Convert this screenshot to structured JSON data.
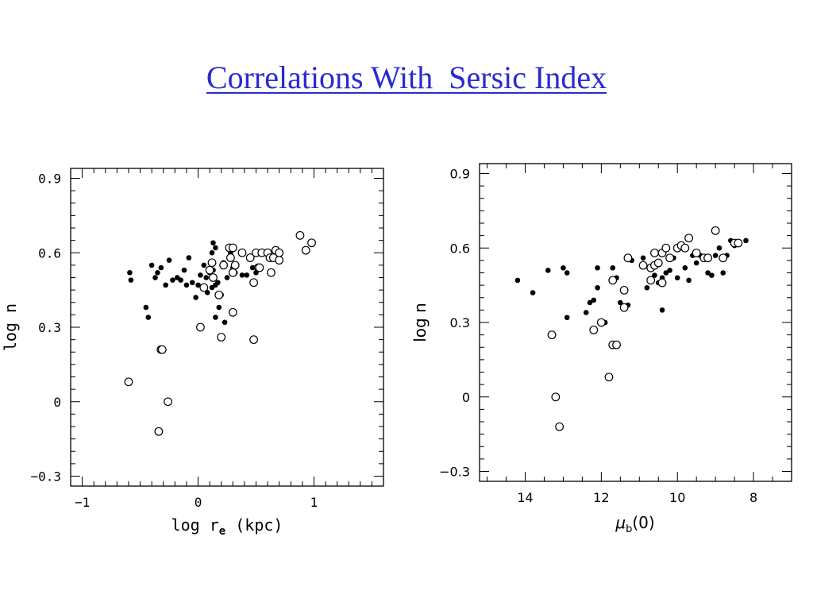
{
  "slide": {
    "title": "Correlations With  Sersic Index"
  },
  "colors": {
    "title": "#2a2ad0",
    "axes": "#000000",
    "filled_marker": "#000000",
    "open_marker_fill": "#ffffff"
  },
  "chart_data": [
    {
      "type": "scatter",
      "title": "",
      "xlabel_main": "log r",
      "xlabel_sub": "e",
      "xlabel_unit": "(kpc)",
      "ylabel": "log n",
      "xlim": [
        -1.1,
        1.6
      ],
      "ylim": [
        -0.34,
        0.94
      ],
      "x_major_ticks": [
        -1,
        0,
        1
      ],
      "x_tick_labels": [
        "−1",
        "0",
        "1"
      ],
      "y_major_ticks": [
        -0.3,
        0,
        0.3,
        0.6,
        0.9
      ],
      "y_tick_labels": [
        "−0.3",
        "0",
        "0.3",
        "0.6",
        "0.9"
      ],
      "grid": false,
      "legend": "none",
      "series": [
        {
          "marker": "filled-circle",
          "points": [
            [
              -0.59,
              0.52
            ],
            [
              -0.58,
              0.49
            ],
            [
              -0.45,
              0.38
            ],
            [
              -0.43,
              0.34
            ],
            [
              -0.4,
              0.55
            ],
            [
              -0.37,
              0.5
            ],
            [
              -0.35,
              0.52
            ],
            [
              -0.32,
              0.54
            ],
            [
              -0.28,
              0.47
            ],
            [
              -0.25,
              0.57
            ],
            [
              -0.22,
              0.49
            ],
            [
              -0.18,
              0.5
            ],
            [
              -0.15,
              0.49
            ],
            [
              -0.12,
              0.53
            ],
            [
              -0.1,
              0.47
            ],
            [
              -0.08,
              0.58
            ],
            [
              -0.05,
              0.48
            ],
            [
              -0.02,
              0.42
            ],
            [
              0.0,
              0.47
            ],
            [
              0.02,
              0.51
            ],
            [
              0.05,
              0.55
            ],
            [
              0.08,
              0.44
            ],
            [
              0.1,
              0.52
            ],
            [
              0.12,
              0.6
            ],
            [
              0.13,
              0.53
            ],
            [
              0.15,
              0.62
            ],
            [
              0.15,
              0.34
            ],
            [
              0.15,
              0.47
            ],
            [
              0.18,
              0.38
            ],
            [
              0.2,
              0.43
            ],
            [
              0.22,
              0.56
            ],
            [
              0.23,
              0.32
            ],
            [
              0.25,
              0.5
            ],
            [
              0.28,
              0.6
            ],
            [
              0.3,
              0.54
            ],
            [
              0.32,
              0.52
            ],
            [
              0.38,
              0.51
            ],
            [
              0.42,
              0.51
            ],
            [
              0.47,
              0.54
            ],
            [
              0.5,
              0.52
            ],
            [
              0.12,
              0.46
            ],
            [
              0.13,
              0.64
            ],
            [
              0.17,
              0.48
            ],
            [
              0.07,
              0.5
            ]
          ]
        },
        {
          "marker": "open-circle",
          "points": [
            [
              -0.6,
              0.08
            ],
            [
              -0.34,
              -0.12
            ],
            [
              -0.32,
              0.21
            ],
            [
              -0.31,
              0.21
            ],
            [
              -0.26,
              0.0
            ],
            [
              0.02,
              0.3
            ],
            [
              0.05,
              0.46
            ],
            [
              0.12,
              0.56
            ],
            [
              0.13,
              0.5
            ],
            [
              0.18,
              0.43
            ],
            [
              0.2,
              0.26
            ],
            [
              0.22,
              0.55
            ],
            [
              0.27,
              0.62
            ],
            [
              0.28,
              0.58
            ],
            [
              0.3,
              0.36
            ],
            [
              0.3,
              0.62
            ],
            [
              0.3,
              0.52
            ],
            [
              0.32,
              0.55
            ],
            [
              0.38,
              0.6
            ],
            [
              0.45,
              0.58
            ],
            [
              0.48,
              0.48
            ],
            [
              0.48,
              0.25
            ],
            [
              0.5,
              0.6
            ],
            [
              0.52,
              0.54
            ],
            [
              0.53,
              0.54
            ],
            [
              0.55,
              0.6
            ],
            [
              0.6,
              0.6
            ],
            [
              0.62,
              0.58
            ],
            [
              0.63,
              0.52
            ],
            [
              0.65,
              0.58
            ],
            [
              0.67,
              0.61
            ],
            [
              0.7,
              0.6
            ],
            [
              0.7,
              0.57
            ],
            [
              0.88,
              0.67
            ],
            [
              0.93,
              0.61
            ],
            [
              0.98,
              0.64
            ],
            [
              0.1,
              0.53
            ]
          ]
        }
      ]
    },
    {
      "type": "scatter",
      "title": "",
      "xlabel_symbol": "μ",
      "xlabel_sub": "b",
      "xlabel_tail": "(0)",
      "ylabel": "log n",
      "xlim": [
        15.2,
        7.0
      ],
      "ylim": [
        -0.34,
        0.94
      ],
      "x_major_ticks": [
        14,
        12,
        10,
        8
      ],
      "x_tick_labels": [
        "14",
        "12",
        "10",
        "8"
      ],
      "y_major_ticks": [
        -0.3,
        0,
        0.3,
        0.6,
        0.9
      ],
      "y_tick_labels": [
        "−0.3",
        "0",
        "0.3",
        "0.6",
        "0.9"
      ],
      "grid": false,
      "legend": "none",
      "series": [
        {
          "marker": "filled-circle",
          "points": [
            [
              14.2,
              0.47
            ],
            [
              13.8,
              0.42
            ],
            [
              13.4,
              0.51
            ],
            [
              13.0,
              0.52
            ],
            [
              12.9,
              0.5
            ],
            [
              12.9,
              0.32
            ],
            [
              12.4,
              0.34
            ],
            [
              12.3,
              0.38
            ],
            [
              12.2,
              0.39
            ],
            [
              12.1,
              0.44
            ],
            [
              12.1,
              0.52
            ],
            [
              11.9,
              0.3
            ],
            [
              11.7,
              0.52
            ],
            [
              11.6,
              0.48
            ],
            [
              11.5,
              0.38
            ],
            [
              11.3,
              0.37
            ],
            [
              11.2,
              0.55
            ],
            [
              10.9,
              0.56
            ],
            [
              10.8,
              0.44
            ],
            [
              10.7,
              0.52
            ],
            [
              10.6,
              0.49
            ],
            [
              10.5,
              0.46
            ],
            [
              10.4,
              0.35
            ],
            [
              10.4,
              0.48
            ],
            [
              10.3,
              0.5
            ],
            [
              10.2,
              0.51
            ],
            [
              10.1,
              0.56
            ],
            [
              10.0,
              0.48
            ],
            [
              9.8,
              0.52
            ],
            [
              9.7,
              0.47
            ],
            [
              9.6,
              0.57
            ],
            [
              9.5,
              0.54
            ],
            [
              9.4,
              0.57
            ],
            [
              9.3,
              0.56
            ],
            [
              9.2,
              0.5
            ],
            [
              9.1,
              0.49
            ],
            [
              9.0,
              0.57
            ],
            [
              8.9,
              0.6
            ],
            [
              8.8,
              0.5
            ],
            [
              8.7,
              0.57
            ],
            [
              8.6,
              0.63
            ],
            [
              8.5,
              0.61
            ],
            [
              8.2,
              0.63
            ]
          ]
        },
        {
          "marker": "open-circle",
          "points": [
            [
              13.3,
              0.25
            ],
            [
              13.2,
              0.0
            ],
            [
              13.1,
              -0.12
            ],
            [
              12.2,
              0.27
            ],
            [
              12.0,
              0.3
            ],
            [
              11.8,
              0.08
            ],
            [
              11.7,
              0.21
            ],
            [
              11.6,
              0.21
            ],
            [
              11.7,
              0.47
            ],
            [
              11.4,
              0.43
            ],
            [
              11.4,
              0.36
            ],
            [
              11.3,
              0.56
            ],
            [
              10.9,
              0.53
            ],
            [
              10.7,
              0.52
            ],
            [
              10.6,
              0.53
            ],
            [
              10.6,
              0.58
            ],
            [
              10.5,
              0.54
            ],
            [
              10.4,
              0.58
            ],
            [
              10.3,
              0.6
            ],
            [
              10.2,
              0.56
            ],
            [
              10.0,
              0.6
            ],
            [
              9.9,
              0.61
            ],
            [
              9.8,
              0.6
            ],
            [
              9.7,
              0.64
            ],
            [
              9.5,
              0.58
            ],
            [
              9.3,
              0.56
            ],
            [
              9.2,
              0.56
            ],
            [
              9.0,
              0.67
            ],
            [
              8.8,
              0.56
            ],
            [
              8.5,
              0.62
            ],
            [
              8.4,
              0.62
            ],
            [
              10.4,
              0.46
            ],
            [
              10.7,
              0.47
            ]
          ]
        }
      ]
    }
  ]
}
